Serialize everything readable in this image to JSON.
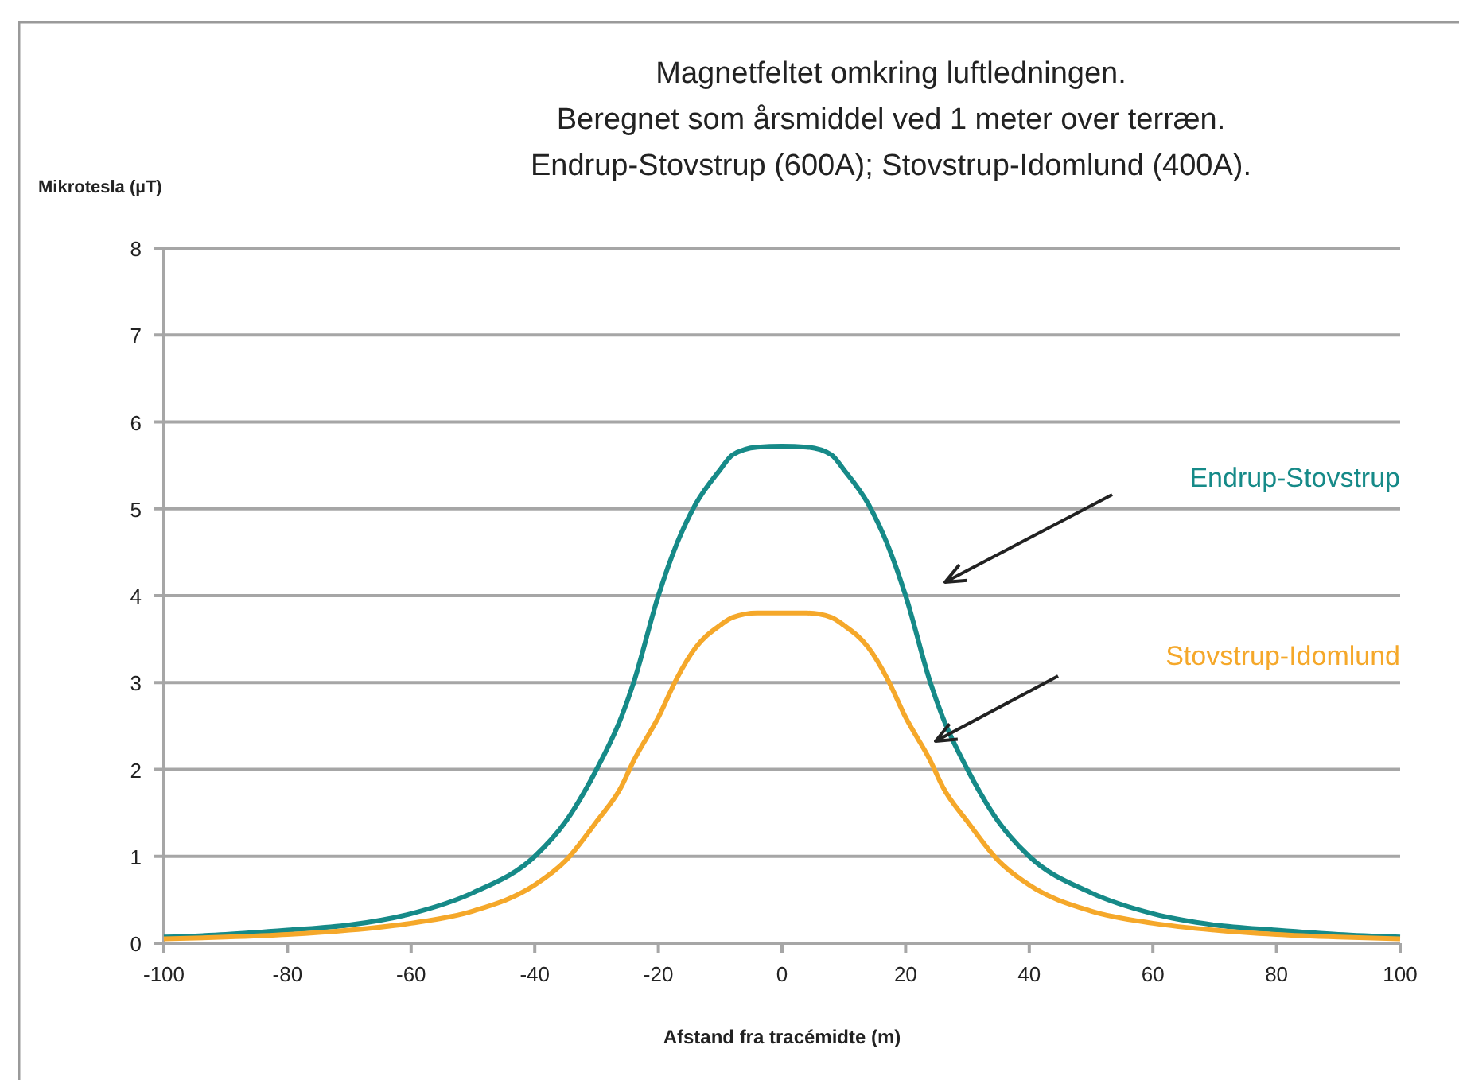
{
  "chart_data": {
    "type": "line",
    "title": "Magnetfeltet omkring luftledningen.\nBeregnet som årsmiddel ved 1 meter over terræn.\nEndrup-Stovstrup (600A); Stovstrup-Idomlund (400A).",
    "xlabel": "Afstand fra tracémidte (m)",
    "ylabel": "Mikrotesla (µT)",
    "x": [
      -100,
      -90,
      -80,
      -70,
      -60,
      -50,
      -40,
      -35,
      -30,
      -26,
      -24,
      -20,
      -17,
      -14,
      -10,
      -8,
      -4,
      0,
      4,
      8,
      10,
      14,
      17,
      20,
      24,
      26,
      30,
      35,
      40,
      50,
      60,
      70,
      80,
      90,
      100
    ],
    "series": [
      {
        "name": "Endrup-Stovstrup",
        "color": "#168a88",
        "values": [
          0.07,
          0.1,
          0.15,
          0.21,
          0.34,
          0.58,
          1.0,
          1.4,
          2.0,
          2.6,
          3.0,
          4.0,
          4.6,
          5.05,
          5.45,
          5.62,
          5.71,
          5.72,
          5.71,
          5.62,
          5.45,
          5.05,
          4.6,
          4.0,
          3.0,
          2.6,
          2.0,
          1.4,
          1.0,
          0.58,
          0.34,
          0.21,
          0.15,
          0.1,
          0.07
        ]
      },
      {
        "name": "Stovstrup-Idomlund",
        "color": "#f5a82a",
        "values": [
          0.05,
          0.07,
          0.1,
          0.15,
          0.23,
          0.37,
          0.67,
          0.95,
          1.4,
          1.8,
          2.1,
          2.6,
          3.05,
          3.4,
          3.66,
          3.75,
          3.8,
          3.8,
          3.8,
          3.75,
          3.66,
          3.4,
          3.05,
          2.6,
          2.1,
          1.8,
          1.4,
          0.95,
          0.67,
          0.37,
          0.23,
          0.15,
          0.1,
          0.07,
          0.05
        ]
      }
    ],
    "xlim": [
      -100,
      100
    ],
    "ylim": [
      0,
      8
    ],
    "xticks": [
      -100,
      -80,
      -60,
      -40,
      -20,
      0,
      20,
      40,
      60,
      80,
      100
    ],
    "yticks": [
      0,
      1,
      2,
      3,
      4,
      5,
      6,
      7,
      8
    ],
    "grid": "y",
    "legend": false,
    "marker": "none",
    "line_style": "solid"
  }
}
